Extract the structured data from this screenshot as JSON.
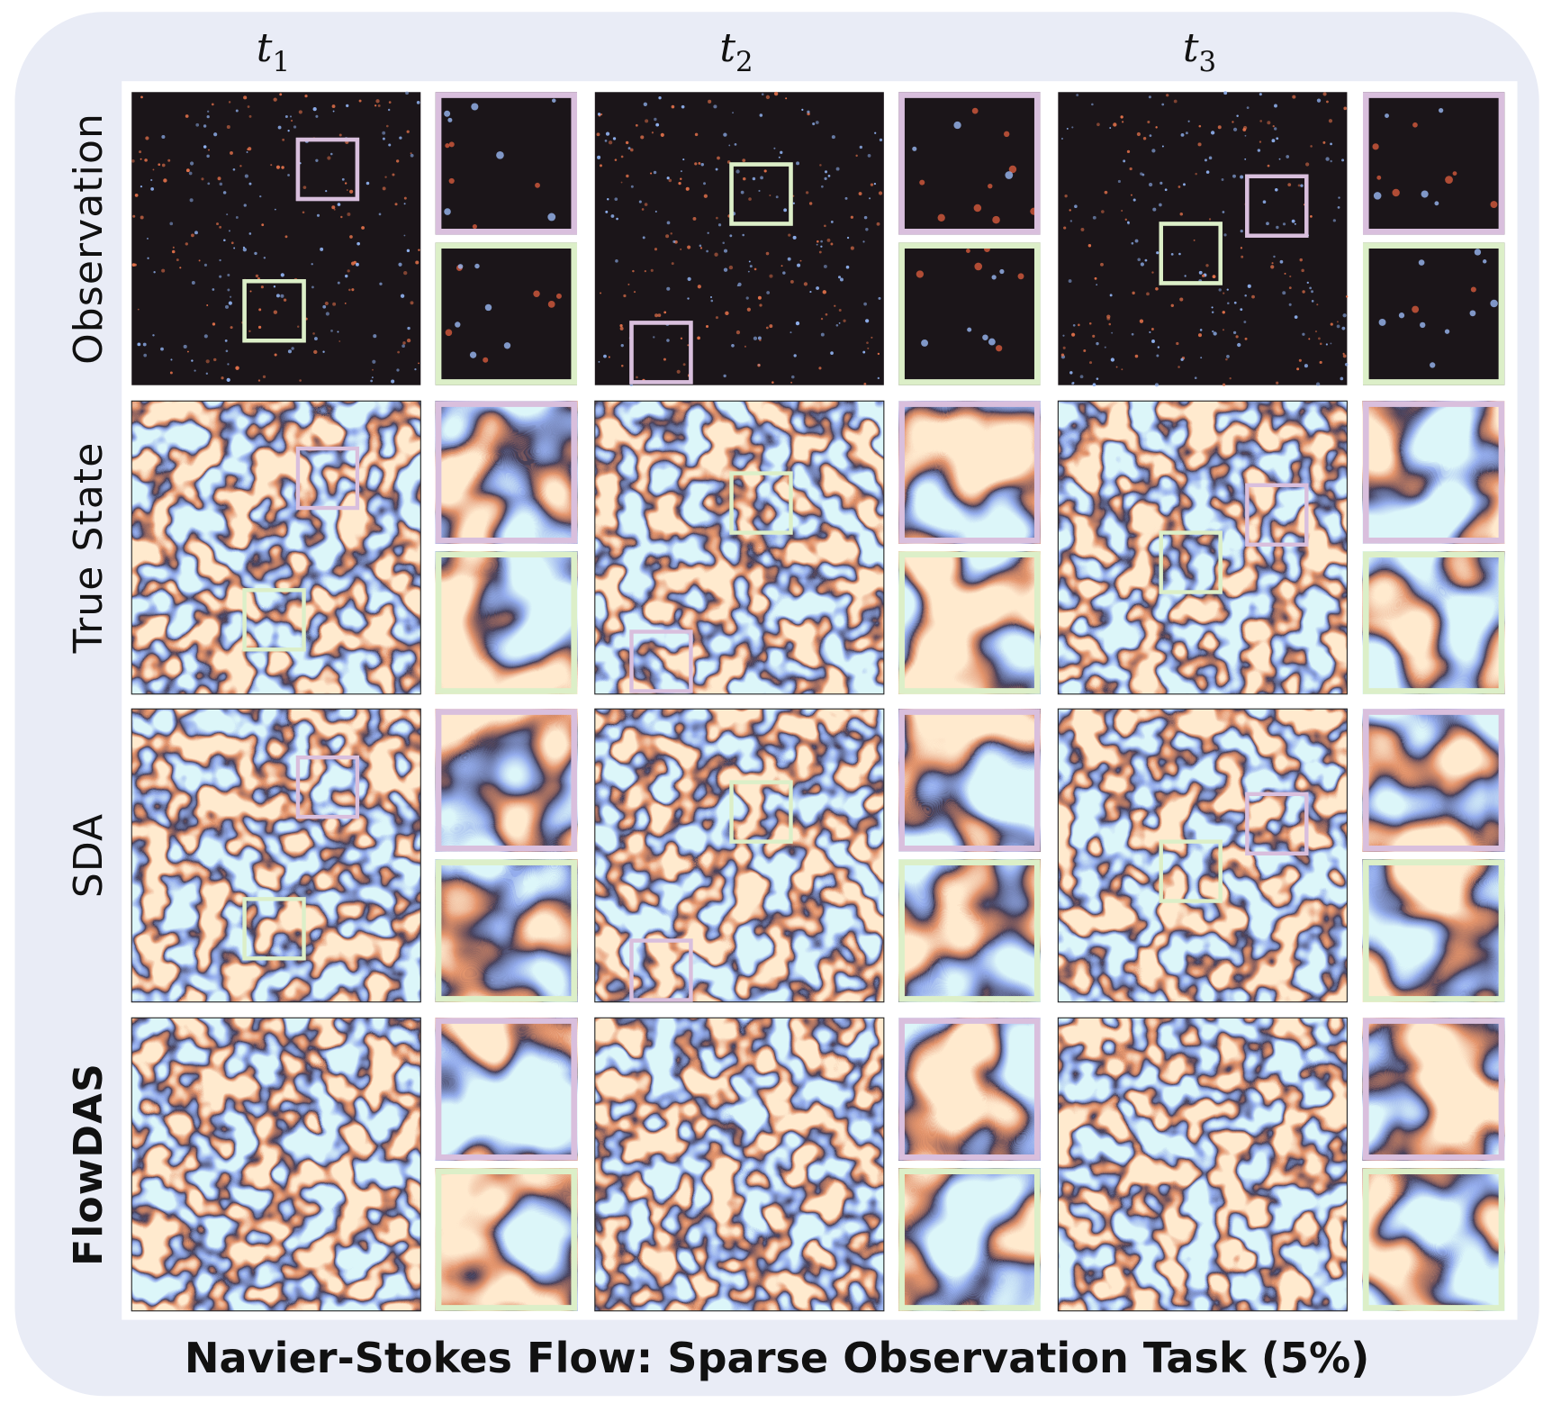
{
  "header": {
    "columns": [
      {
        "base": "t",
        "sub": "1"
      },
      {
        "base": "t",
        "sub": "2"
      },
      {
        "base": "t",
        "sub": "3"
      }
    ]
  },
  "rows": [
    "Observation",
    "True State",
    "SDA",
    "FlowDAS"
  ],
  "caption": "Navier-Stokes Flow: Sparse Observation Task (5%)"
}
